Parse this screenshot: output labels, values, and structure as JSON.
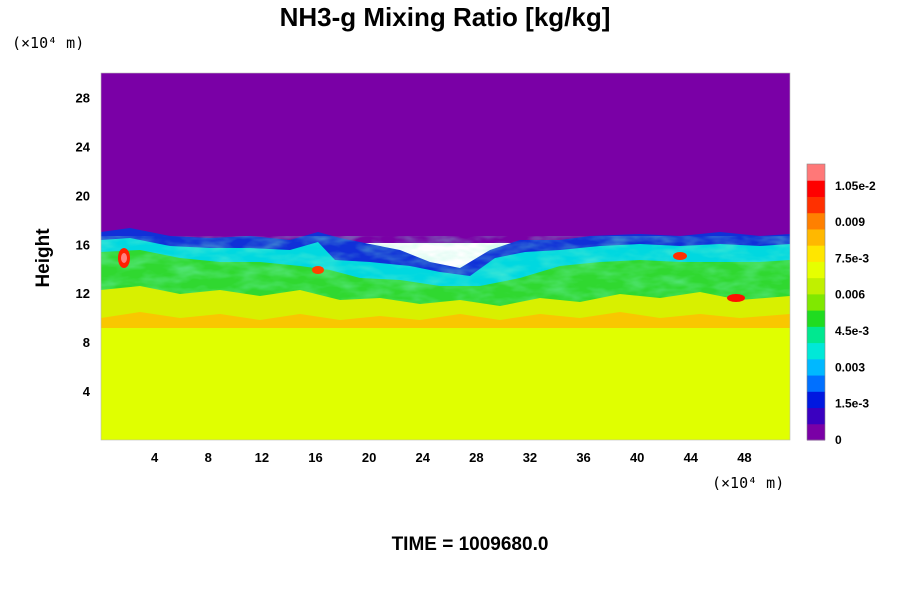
{
  "chart_data": {
    "type": "heatmap",
    "title": "NH3-g Mixing Ratio [kg/kg]",
    "ylabel": "Height",
    "x_unit": "(×10⁴ m)",
    "y_unit": "(×10⁴ m)",
    "xlim": [
      0,
      51.4
    ],
    "ylim": [
      0,
      30
    ],
    "x_ticks": [
      "4",
      "8",
      "12",
      "16",
      "20",
      "24",
      "28",
      "32",
      "36",
      "40",
      "44",
      "48"
    ],
    "y_ticks": [
      "4",
      "8",
      "12",
      "16",
      "20",
      "24",
      "28"
    ],
    "colorbar": {
      "range": [
        0,
        0.0114
      ],
      "tick_labels": [
        "0",
        "1.5e-3",
        "0.003",
        "4.5e-3",
        "0.006",
        "7.5e-3",
        "0.009",
        "1.05e-2"
      ],
      "colors": [
        "#7a00a6",
        "#3a00c0",
        "#0018e0",
        "#0070ff",
        "#00b8ff",
        "#00e8d8",
        "#00e890",
        "#20dc20",
        "#80e800",
        "#c0f000",
        "#e6ff00",
        "#ffe600",
        "#ffb800",
        "#ff8000",
        "#ff3000",
        "#ff0000",
        "#ff7878"
      ]
    },
    "field_summary": {
      "lower_layer": {
        "height_range": [
          0,
          9.5
        ],
        "value": 0.0081
      },
      "mixed_layer": {
        "height_range": [
          9.5,
          17
        ],
        "value_range": [
          0.003,
          0.0105
        ]
      },
      "upper_layer": {
        "height_range": [
          17,
          30
        ],
        "value": 0
      }
    }
  },
  "footer": {
    "time_label": "TIME = 1009680.0"
  }
}
